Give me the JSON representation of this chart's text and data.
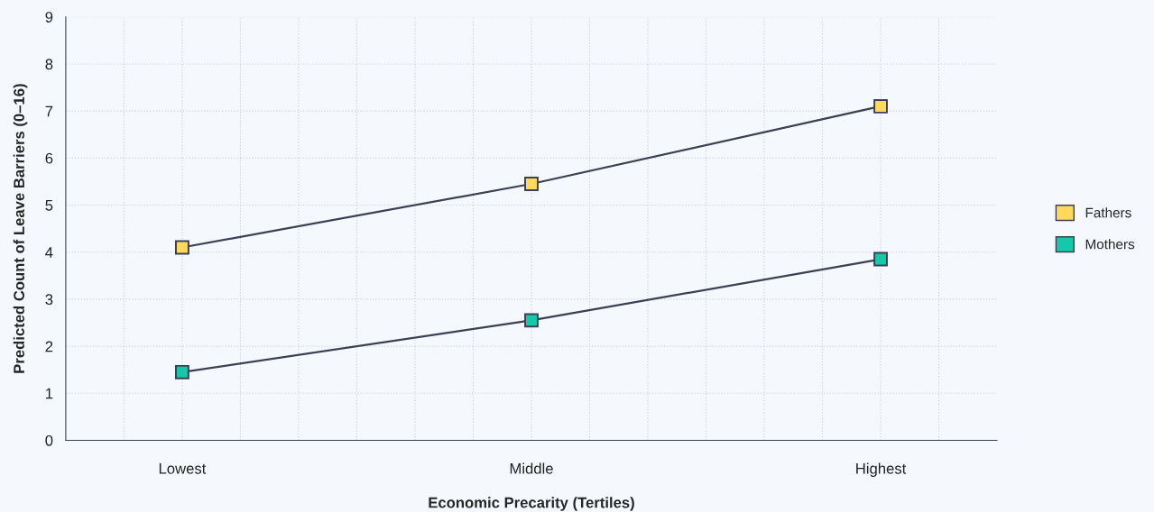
{
  "chart_data": {
    "type": "line",
    "xlabel": "Economic Precarity (Tertiles)",
    "ylabel": "Predicted Count of Leave Barriers (0–16)",
    "categories": [
      "Lowest",
      "Middle",
      "Highest"
    ],
    "series": [
      {
        "name": "Fathers",
        "color": "#ffd95a",
        "values": [
          4.1,
          5.45,
          7.1
        ]
      },
      {
        "name": "Mothers",
        "color": "#14c8a8",
        "values": [
          1.45,
          2.55,
          3.85
        ]
      }
    ],
    "ylim": [
      0,
      9
    ],
    "yticks": [
      0,
      1,
      2,
      3,
      4,
      5,
      6,
      7,
      8,
      9
    ],
    "grid": true,
    "legend": "right",
    "marker": "square",
    "line_style": "solid"
  }
}
